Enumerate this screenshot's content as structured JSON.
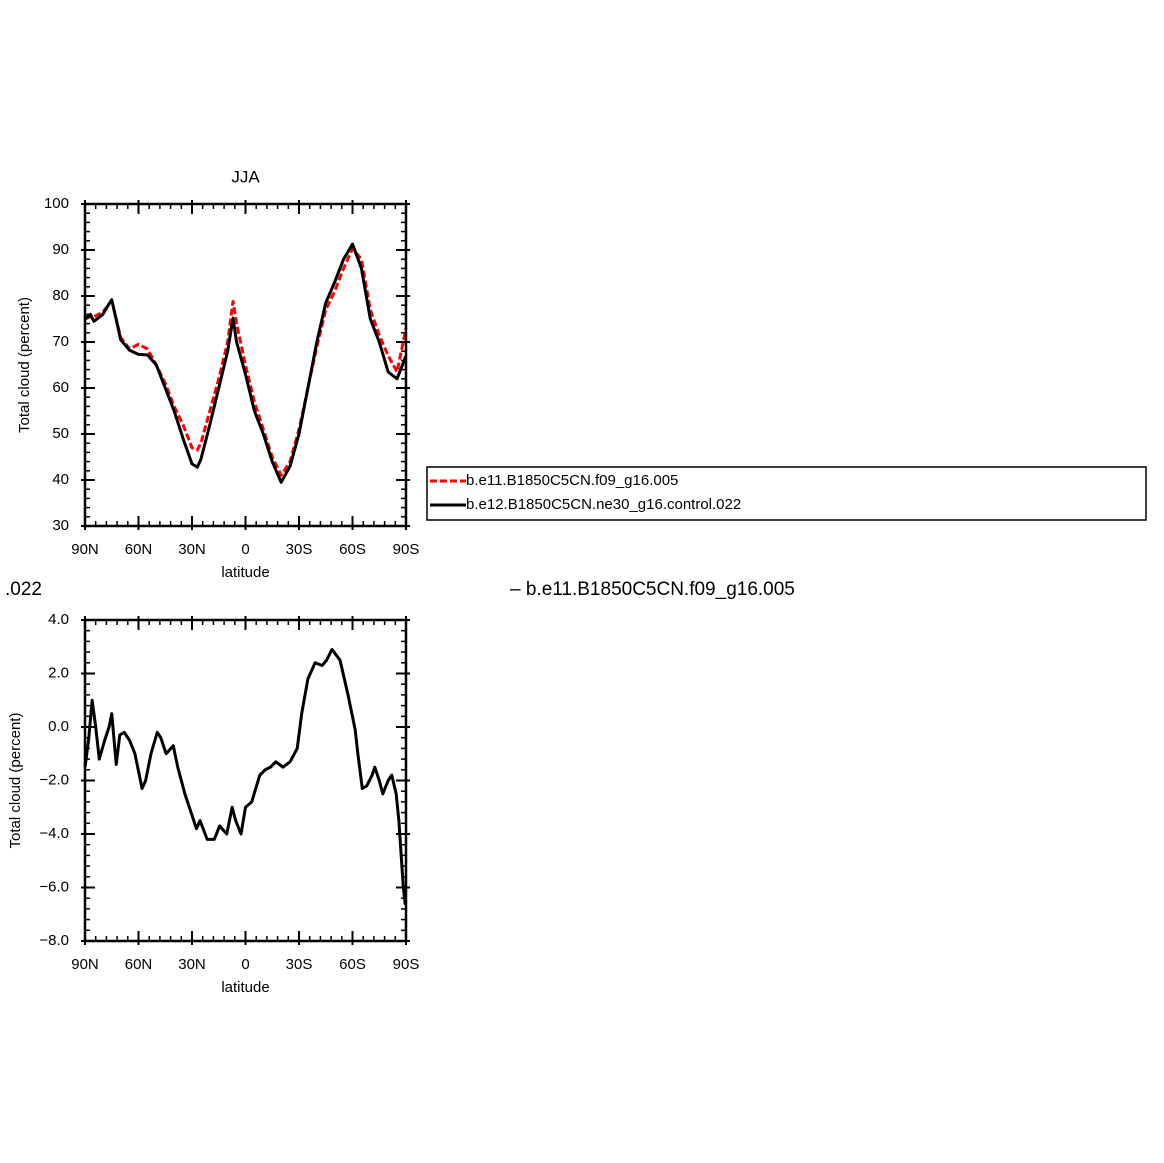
{
  "chart_data": [
    {
      "type": "line",
      "title": "JJA",
      "ylabel": "Total cloud (percent)",
      "xlabel": "latitude",
      "x": [
        90,
        87,
        85,
        80,
        77,
        75,
        70,
        65,
        60,
        55,
        50,
        45,
        40,
        35,
        30,
        27,
        25,
        20,
        15,
        10,
        7,
        5,
        0,
        -5,
        -10,
        -15,
        -20,
        -25,
        -30,
        -35,
        -40,
        -45,
        -50,
        -55,
        -60,
        -65,
        -70,
        -75,
        -80,
        -85,
        -90
      ],
      "xlim": [
        90,
        -90
      ],
      "xticks": [
        {
          "value": 90,
          "label": "90N"
        },
        {
          "value": 60,
          "label": "60N"
        },
        {
          "value": 30,
          "label": "30N"
        },
        0,
        {
          "value": -30,
          "label": "30S"
        },
        {
          "value": -60,
          "label": "60S"
        },
        {
          "value": -90,
          "label": "90S"
        }
      ],
      "ylim": [
        30,
        100
      ],
      "yticks": [
        30,
        40,
        50,
        60,
        70,
        80,
        90,
        100
      ],
      "series": [
        {
          "name": "b.e11.B1850C5CN.f09_g16.005",
          "color": "#ff0000",
          "dashed": true,
          "values": [
            75,
            75.5,
            75.5,
            76.5,
            78,
            79,
            71,
            68.5,
            69.5,
            68.5,
            65,
            61,
            56,
            52,
            47,
            46.5,
            48,
            55,
            62,
            70,
            78.8,
            74,
            65,
            57,
            51,
            45,
            41,
            44,
            51,
            60,
            69,
            77,
            81,
            86,
            90.3,
            88,
            77,
            71.5,
            67,
            63.5,
            73
          ]
        },
        {
          "name": "b.e12.B1850C5CN.ne30_g16.control.022",
          "color": "#000000",
          "dashed": false,
          "values": [
            75,
            76,
            74.5,
            76,
            78,
            79.2,
            70.5,
            68.2,
            67.3,
            67.2,
            65,
            60,
            55,
            49,
            43.5,
            42.8,
            44.5,
            52,
            60,
            68,
            75.2,
            70,
            63,
            55,
            50,
            44,
            39.5,
            43,
            50,
            60,
            70,
            78.5,
            83,
            88,
            91.3,
            86,
            75,
            70,
            63.5,
            62,
            67
          ]
        }
      ]
    },
    {
      "type": "line",
      "ylabel": "Total cloud (percent)",
      "xlabel": "latitude",
      "annotations": [
        ".022",
        "– b.e11.B1850C5CN.f09_g16.005"
      ],
      "x": [
        90,
        88,
        86,
        84,
        82,
        79,
        76.5,
        75,
        72.5,
        70.5,
        68,
        65,
        62,
        58,
        56,
        53,
        49.5,
        47.5,
        44.5,
        40.5,
        38,
        34,
        30.5,
        27.5,
        25.5,
        21.5,
        17.5,
        14.5,
        10.5,
        7.5,
        5.5,
        2.5,
        0,
        -3.5,
        -8,
        -11,
        -14,
        -17,
        -21,
        -25,
        -29,
        -31.5,
        -35,
        -39,
        -43,
        -45.5,
        -48.5,
        -53,
        -57.5,
        -61.5,
        -63,
        -65.5,
        -68,
        -71,
        -72.5,
        -75,
        -77,
        -80,
        -82,
        -84.5,
        -86,
        -88.5,
        -89.5,
        -90
      ],
      "values": [
        -1.5,
        -0.5,
        1.0,
        0.0,
        -1.2,
        -0.5,
        0.0,
        0.5,
        -1.4,
        -0.3,
        -0.2,
        -0.5,
        -1.0,
        -2.3,
        -2.0,
        -1.0,
        -0.2,
        -0.4,
        -1.0,
        -0.7,
        -1.5,
        -2.5,
        -3.2,
        -3.8,
        -3.5,
        -4.2,
        -4.2,
        -3.7,
        -4.0,
        -3.0,
        -3.5,
        -4.0,
        -3.0,
        -2.8,
        -1.8,
        -1.6,
        -1.5,
        -1.3,
        -1.5,
        -1.3,
        -0.8,
        0.5,
        1.8,
        2.4,
        2.3,
        2.5,
        2.9,
        2.5,
        1.2,
        -0.1,
        -1.0,
        -2.3,
        -2.2,
        -1.8,
        -1.5,
        -2.0,
        -2.5,
        -2.0,
        -1.8,
        -2.5,
        -3.5,
        -6.0,
        -6.6,
        -6.5
      ],
      "color": "#000000",
      "xlim": [
        90,
        -90
      ],
      "xticks": [
        {
          "value": 90,
          "label": "90N"
        },
        {
          "value": 60,
          "label": "60N"
        },
        {
          "value": 30,
          "label": "30N"
        },
        0,
        {
          "value": -30,
          "label": "30S"
        },
        {
          "value": -60,
          "label": "60S"
        },
        {
          "value": -90,
          "label": "90S"
        }
      ],
      "ylim": [
        -8,
        4
      ],
      "yticks": [
        {
          "value": -8,
          "label": "−8.0"
        },
        {
          "value": -6,
          "label": "−6.0"
        },
        {
          "value": -4,
          "label": "−4.0"
        },
        {
          "value": -2,
          "label": "−2.0"
        },
        {
          "value": 0,
          "label": "0.0"
        },
        {
          "value": 2,
          "label": "2.0"
        },
        {
          "value": 4,
          "label": "4.0"
        }
      ]
    }
  ]
}
